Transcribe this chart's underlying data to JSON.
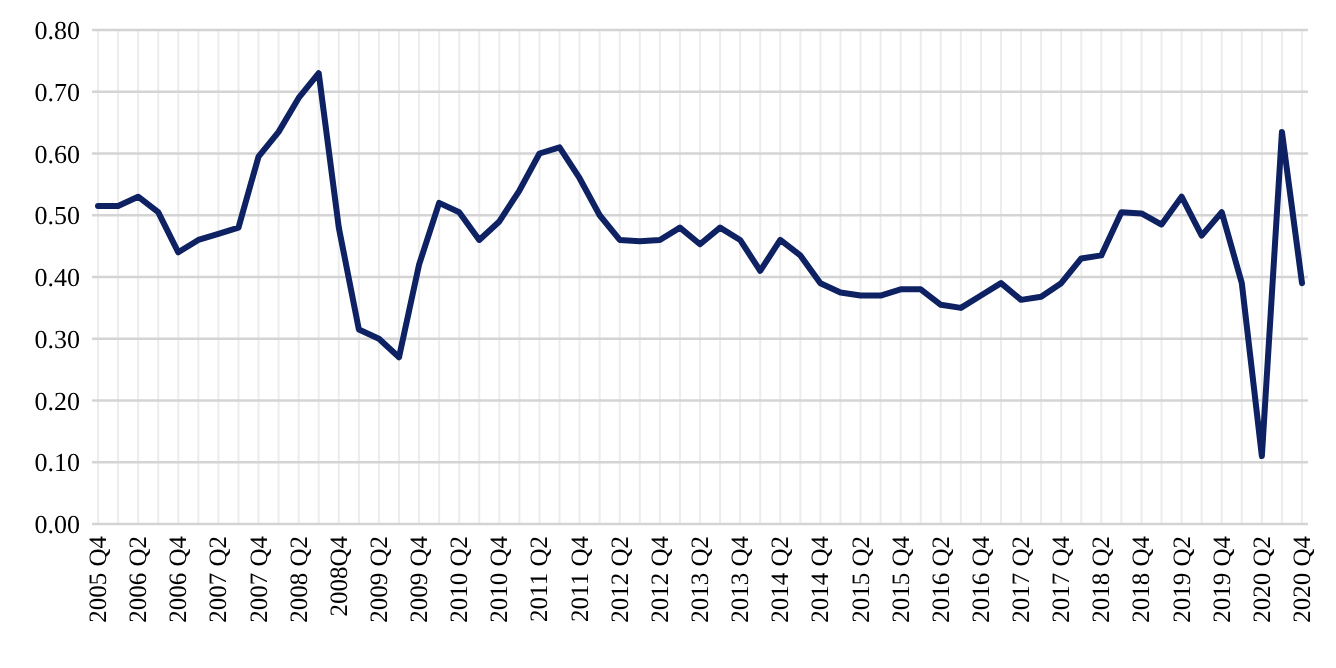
{
  "chart_data": {
    "type": "line",
    "categories": [
      "2005 Q4",
      null,
      "2006 Q2",
      null,
      "2006 Q4",
      null,
      "2007 Q2",
      null,
      "2007 Q4",
      null,
      "2008 Q2",
      null,
      "2008Q4",
      null,
      "2009 Q2",
      null,
      "2009 Q4",
      null,
      "2010 Q2",
      null,
      "2010 Q4",
      null,
      "2011 Q2",
      null,
      "2011 Q4",
      null,
      "2012 Q2",
      null,
      "2012 Q4",
      null,
      "2013 Q2",
      null,
      "2013 Q4",
      null,
      "2014 Q2",
      null,
      "2014 Q4",
      null,
      "2015 Q2",
      null,
      "2015 Q4",
      null,
      "2016 Q2",
      null,
      "2016 Q4",
      null,
      "2017 Q2",
      null,
      "2017 Q4",
      null,
      "2018 Q2",
      null,
      "2018 Q4",
      null,
      "2019 Q2",
      null,
      "2019 Q4",
      null,
      "2020 Q2",
      null,
      "2020 Q4"
    ],
    "series": [
      {
        "color": "#0d2163",
        "values": [
          0.515,
          0.515,
          0.53,
          0.505,
          0.44,
          0.46,
          0.47,
          0.48,
          0.595,
          0.635,
          0.69,
          0.73,
          0.48,
          0.315,
          0.3,
          0.27,
          0.42,
          0.52,
          0.505,
          0.46,
          0.49,
          0.54,
          0.6,
          0.61,
          0.56,
          0.5,
          0.46,
          0.458,
          0.46,
          0.48,
          0.453,
          0.48,
          0.46,
          0.41,
          0.46,
          0.435,
          0.39,
          0.375,
          0.37,
          0.37,
          0.38,
          0.38,
          0.355,
          0.35,
          0.37,
          0.39,
          0.363,
          0.368,
          0.39,
          0.43,
          0.435,
          0.505,
          0.503,
          0.485,
          0.53,
          0.467,
          0.505,
          0.39,
          0.11,
          0.635,
          0.39
        ]
      }
    ],
    "ylim": [
      0,
      0.8
    ],
    "yticks": [
      {
        "value": 0,
        "label": "0.00"
      },
      {
        "value": 0.1,
        "label": "0.10"
      },
      {
        "value": 0.2,
        "label": "0.20"
      },
      {
        "value": 0.3,
        "label": "0.30"
      },
      {
        "value": 0.4,
        "label": "0.40"
      },
      {
        "value": 0.5,
        "label": "0.50"
      },
      {
        "value": 0.6,
        "label": "0.60"
      },
      {
        "value": 0.7,
        "label": "0.70"
      },
      {
        "value": 0.8,
        "label": "0.80"
      }
    ],
    "grid": true,
    "marker": "none",
    "line_style": "solid"
  }
}
